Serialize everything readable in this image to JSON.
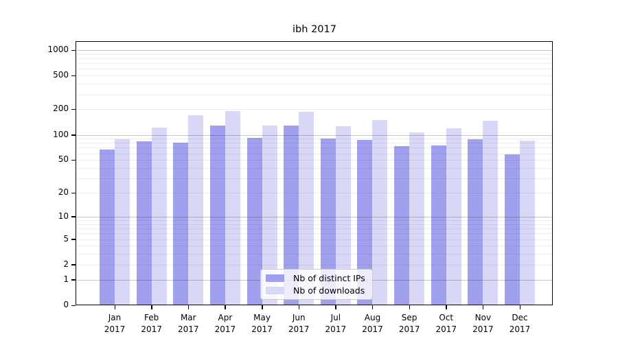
{
  "chart_data": {
    "type": "bar",
    "title": "ibh 2017",
    "categories": [
      "Jan",
      "Feb",
      "Mar",
      "Apr",
      "May",
      "Jun",
      "Jul",
      "Aug",
      "Sep",
      "Oct",
      "Nov",
      "Dec"
    ],
    "category_year": "2017",
    "series": [
      {
        "name": "Nb of distinct IPs",
        "color": "#a0a0ef",
        "values": [
          67,
          84,
          81,
          128,
          92,
          128,
          91,
          87,
          74,
          75,
          88,
          58
        ]
      },
      {
        "name": "Nb of downloads",
        "color": "#d9d9f7",
        "values": [
          89,
          122,
          170,
          190,
          129,
          188,
          126,
          150,
          107,
          119,
          148,
          85
        ]
      }
    ],
    "yscale": "log1p",
    "ylim": [
      0,
      1000
    ],
    "y_ticks": [
      0,
      1,
      2,
      5,
      10,
      20,
      50,
      100,
      200,
      500,
      1000
    ],
    "grid": true,
    "grid_major_values": [
      1,
      10,
      100,
      1000
    ],
    "grid_minor_values": [
      2,
      3,
      4,
      5,
      6,
      7,
      8,
      9,
      20,
      30,
      40,
      50,
      60,
      70,
      80,
      90,
      200,
      300,
      400,
      500,
      600,
      700,
      800,
      900
    ],
    "legend_position": "lower-center",
    "xlabel": "",
    "ylabel": ""
  },
  "colors": {
    "background": "#ffffff",
    "axis": "#000000",
    "grid_major": "rgba(0,0,0,0.22)",
    "grid_minor": "rgba(0,0,0,0.07)",
    "bar_ips": "#a0a0ef",
    "bar_downloads": "#d9d9f7",
    "legend_border": "#cccccc",
    "legend_background": "rgba(255,255,255,0.8)"
  }
}
